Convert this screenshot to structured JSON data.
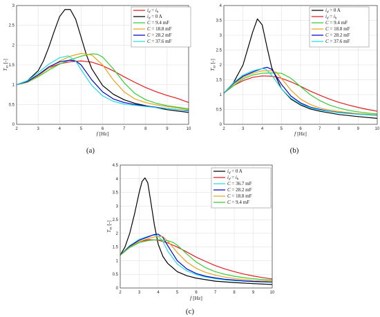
{
  "chart_data": [
    {
      "type": "line",
      "panel_label": "(a)",
      "xlabel_italic": "f",
      "xlabel_unit": " [Hz]",
      "ylabel_main": "T",
      "ylabel_sub": "xz",
      "ylabel_unit": " [-]",
      "xlim": [
        2,
        10
      ],
      "ylim": [
        0,
        3
      ],
      "xticks": [
        2,
        3,
        4,
        5,
        6,
        7,
        8,
        9,
        10
      ],
      "yticks": [
        0,
        0.5,
        1,
        1.5,
        2,
        2.5,
        3
      ],
      "grid": true,
      "legend_position": "top-right",
      "series": [
        {
          "legend_var": "i",
          "legend_sub": "d",
          "legend_rest": " = ",
          "legend_var2": "i",
          "legend_sub2": "h",
          "color": "#e31a1c",
          "x": [
            2,
            2.5,
            3,
            3.5,
            4,
            4.5,
            5,
            5.5,
            6,
            6.5,
            7,
            7.5,
            8,
            8.5,
            9,
            9.5,
            10
          ],
          "y": [
            1.0,
            1.08,
            1.25,
            1.42,
            1.53,
            1.58,
            1.6,
            1.57,
            1.48,
            1.35,
            1.2,
            1.06,
            0.93,
            0.82,
            0.73,
            0.65,
            0.55
          ]
        },
        {
          "legend_var": "i",
          "legend_sub": "d",
          "legend_rest": " = 0 A",
          "color": "#000000",
          "x": [
            2,
            2.5,
            3,
            3.25,
            3.5,
            3.75,
            4,
            4.25,
            4.5,
            4.75,
            5,
            5.25,
            5.5,
            6,
            6.5,
            7,
            7.5,
            8,
            9,
            10
          ],
          "y": [
            1.0,
            1.1,
            1.35,
            1.6,
            1.95,
            2.35,
            2.72,
            2.9,
            2.9,
            2.65,
            2.2,
            1.75,
            1.4,
            0.98,
            0.76,
            0.62,
            0.53,
            0.47,
            0.37,
            0.3
          ]
        },
        {
          "legend_var": "C",
          "legend_rest": " = 9.4 mF",
          "color": "#33cc33",
          "x": [
            2,
            2.5,
            3,
            3.5,
            4,
            4.5,
            5,
            5.5,
            5.75,
            6,
            6.5,
            7,
            7.5,
            8,
            8.5,
            9,
            9.5,
            10
          ],
          "y": [
            1.0,
            1.06,
            1.2,
            1.37,
            1.52,
            1.63,
            1.72,
            1.78,
            1.77,
            1.7,
            1.4,
            1.05,
            0.78,
            0.62,
            0.53,
            0.47,
            0.43,
            0.39
          ]
        },
        {
          "legend_var": "C",
          "legend_rest": " = 18.8 mF",
          "color": "#e8a317",
          "x": [
            2,
            2.5,
            3,
            3.5,
            4,
            4.5,
            5,
            5.5,
            6,
            6.5,
            7,
            7.5,
            8,
            8.5,
            9,
            9.5,
            10
          ],
          "y": [
            1.0,
            1.07,
            1.22,
            1.42,
            1.6,
            1.72,
            1.79,
            1.75,
            1.5,
            1.12,
            0.82,
            0.64,
            0.55,
            0.49,
            0.45,
            0.41,
            0.37
          ]
        },
        {
          "legend_var": "C",
          "legend_rest": " = 28.2 mF",
          "color": "#0000cc",
          "x": [
            2,
            2.5,
            3,
            3.5,
            4,
            4.5,
            4.75,
            5,
            5.5,
            6,
            6.5,
            7,
            7.5,
            8,
            8.5,
            9,
            9.5,
            10
          ],
          "y": [
            1.0,
            1.08,
            1.25,
            1.45,
            1.58,
            1.62,
            1.6,
            1.5,
            1.12,
            0.82,
            0.64,
            0.55,
            0.5,
            0.46,
            0.43,
            0.4,
            0.37,
            0.34
          ]
        },
        {
          "legend_var": "C",
          "legend_rest": " = 37.6 mF",
          "color": "#22dddd",
          "x": [
            2,
            2.5,
            3,
            3.5,
            4,
            4.4,
            4.75,
            5,
            5.5,
            6,
            6.5,
            7,
            7.5,
            8,
            8.5,
            9,
            9.5,
            10
          ],
          "y": [
            1.0,
            1.1,
            1.3,
            1.52,
            1.68,
            1.73,
            1.6,
            1.38,
            0.98,
            0.72,
            0.58,
            0.51,
            0.48,
            0.45,
            0.42,
            0.4,
            0.37,
            0.35
          ]
        }
      ]
    },
    {
      "type": "line",
      "panel_label": "(b)",
      "xlabel_italic": "f",
      "xlabel_unit": " [Hz]",
      "ylabel_main": "T",
      "ylabel_sub": "xz",
      "ylabel_unit": " [-]",
      "xlim": [
        2,
        10
      ],
      "ylim": [
        0,
        4
      ],
      "xticks": [
        2,
        3,
        4,
        5,
        6,
        7,
        8,
        9,
        10
      ],
      "yticks": [
        0,
        0.5,
        1,
        1.5,
        2,
        2.5,
        3,
        3.5,
        4
      ],
      "grid": true,
      "legend_position": "top-right",
      "series": [
        {
          "legend_var": "i",
          "legend_sub": "d",
          "legend_rest": " = 0 A",
          "color": "#000000",
          "x": [
            2,
            2.5,
            3,
            3.25,
            3.5,
            3.75,
            4,
            4.25,
            4.5,
            5,
            5.5,
            6,
            6.5,
            7,
            8,
            9,
            10
          ],
          "y": [
            1.05,
            1.4,
            2.0,
            2.55,
            3.1,
            3.55,
            3.35,
            2.6,
            1.9,
            1.2,
            0.85,
            0.65,
            0.52,
            0.44,
            0.33,
            0.26,
            0.2
          ]
        },
        {
          "legend_var": "i",
          "legend_sub": "d",
          "legend_rest": " = ",
          "legend_var2": "i",
          "legend_sub2": "h",
          "color": "#e31a1c",
          "x": [
            2,
            2.5,
            3,
            3.5,
            4,
            4.5,
            5,
            5.5,
            6,
            6.5,
            7,
            7.5,
            8,
            8.5,
            9,
            9.5,
            10
          ],
          "y": [
            1.05,
            1.3,
            1.47,
            1.58,
            1.63,
            1.62,
            1.55,
            1.43,
            1.28,
            1.12,
            0.98,
            0.85,
            0.74,
            0.65,
            0.57,
            0.5,
            0.44
          ]
        },
        {
          "legend_var": "C",
          "legend_rest": " = 9.4 mF",
          "color": "#33cc33",
          "x": [
            2,
            2.5,
            3,
            3.5,
            4,
            4.5,
            5,
            5.5,
            6,
            6.5,
            7,
            7.5,
            8,
            8.5,
            9,
            9.5,
            10
          ],
          "y": [
            1.05,
            1.3,
            1.53,
            1.66,
            1.72,
            1.73,
            1.72,
            1.55,
            1.27,
            1.0,
            0.8,
            0.65,
            0.55,
            0.47,
            0.42,
            0.38,
            0.35
          ]
        },
        {
          "legend_var": "C",
          "legend_rest": " = 18.8 mF",
          "color": "#e8a317",
          "x": [
            2,
            2.5,
            3,
            3.5,
            4,
            4.5,
            4.75,
            5,
            5.5,
            6,
            6.5,
            7,
            7.5,
            8,
            8.5,
            9,
            9.5,
            10
          ],
          "y": [
            1.05,
            1.35,
            1.58,
            1.72,
            1.8,
            1.8,
            1.75,
            1.55,
            1.15,
            0.85,
            0.67,
            0.55,
            0.48,
            0.43,
            0.39,
            0.36,
            0.34,
            0.32
          ]
        },
        {
          "legend_var": "C",
          "legend_rest": " = 28.2 mF",
          "color": "#0000cc",
          "x": [
            2,
            2.5,
            3,
            3.5,
            4,
            4.25,
            4.5,
            5,
            5.5,
            6,
            6.5,
            7,
            7.5,
            8,
            8.5,
            9,
            9.5,
            10
          ],
          "y": [
            1.05,
            1.38,
            1.62,
            1.76,
            1.88,
            1.92,
            1.85,
            1.35,
            0.95,
            0.72,
            0.58,
            0.5,
            0.44,
            0.4,
            0.37,
            0.34,
            0.32,
            0.3
          ]
        },
        {
          "legend_var": "C",
          "legend_rest": " = 37.6 mF",
          "color": "#22dddd",
          "x": [
            2,
            2.5,
            3,
            3.5,
            4,
            4.2,
            4.5,
            5,
            5.5,
            6,
            6.5,
            7,
            7.5,
            8,
            8.5,
            9,
            9.5,
            10
          ],
          "y": [
            1.05,
            1.4,
            1.66,
            1.8,
            1.88,
            1.85,
            1.65,
            1.2,
            0.88,
            0.68,
            0.56,
            0.48,
            0.43,
            0.39,
            0.36,
            0.34,
            0.32,
            0.3
          ]
        }
      ]
    },
    {
      "type": "line",
      "panel_label": "(c)",
      "xlabel_italic": "f",
      "xlabel_unit": " [Hz]",
      "ylabel_main": "T",
      "ylabel_sub": "xz",
      "ylabel_unit": " [-]",
      "xlim": [
        2,
        10
      ],
      "ylim": [
        0,
        4.5
      ],
      "xticks": [
        2,
        3,
        4,
        5,
        6,
        7,
        8,
        9,
        10
      ],
      "yticks": [
        0,
        0.5,
        1,
        1.5,
        2,
        2.5,
        3,
        3.5,
        4,
        4.5
      ],
      "grid": true,
      "legend_position": "top-right",
      "series": [
        {
          "legend_var": "i",
          "legend_sub": "d",
          "legend_rest": " = 0 A",
          "color": "#000000",
          "x": [
            2,
            2.25,
            2.5,
            2.75,
            3,
            3.15,
            3.3,
            3.45,
            3.6,
            3.8,
            4,
            4.25,
            4.5,
            5,
            5.5,
            6,
            7,
            8,
            9,
            10
          ],
          "y": [
            1.2,
            1.5,
            2.0,
            2.7,
            3.5,
            3.9,
            4.03,
            3.85,
            3.2,
            2.3,
            1.6,
            1.15,
            0.9,
            0.6,
            0.45,
            0.36,
            0.25,
            0.2,
            0.16,
            0.13
          ]
        },
        {
          "legend_var": "i",
          "legend_sub": "d",
          "legend_rest": " = ",
          "legend_var2": "i",
          "legend_sub2": "h",
          "color": "#e31a1c",
          "x": [
            2,
            2.5,
            3,
            3.5,
            4,
            4.5,
            5,
            5.5,
            6,
            6.5,
            7,
            7.5,
            8,
            8.5,
            9,
            9.5,
            10
          ],
          "y": [
            1.2,
            1.5,
            1.7,
            1.77,
            1.75,
            1.65,
            1.5,
            1.32,
            1.13,
            0.97,
            0.82,
            0.7,
            0.6,
            0.51,
            0.44,
            0.38,
            0.33
          ]
        },
        {
          "legend_var": "C",
          "legend_rest": " = 36.7 mF",
          "color": "#22dddd",
          "x": [
            2,
            2.5,
            3,
            3.5,
            3.8,
            4,
            4.25,
            4.5,
            5,
            5.5,
            6,
            6.5,
            7,
            7.5,
            8,
            8.5,
            9,
            9.5,
            10
          ],
          "y": [
            1.2,
            1.55,
            1.78,
            1.9,
            1.94,
            1.9,
            1.7,
            1.35,
            0.88,
            0.63,
            0.49,
            0.4,
            0.34,
            0.3,
            0.27,
            0.25,
            0.23,
            0.22,
            0.21
          ]
        },
        {
          "legend_var": "C",
          "legend_rest": " = 28.2 mF",
          "color": "#0000cc",
          "x": [
            2,
            2.5,
            3,
            3.5,
            3.75,
            4,
            4.25,
            4.5,
            5,
            5.5,
            6,
            6.5,
            7,
            7.5,
            8,
            8.5,
            9,
            9.5,
            10
          ],
          "y": [
            1.2,
            1.53,
            1.75,
            1.88,
            1.95,
            1.97,
            1.85,
            1.55,
            1.0,
            0.7,
            0.53,
            0.43,
            0.37,
            0.32,
            0.29,
            0.26,
            0.24,
            0.23,
            0.22
          ]
        },
        {
          "legend_var": "C",
          "legend_rest": " = 18.8 mF",
          "color": "#e8a317",
          "x": [
            2,
            2.5,
            3,
            3.5,
            4,
            4.25,
            4.5,
            5,
            5.5,
            6,
            6.5,
            7,
            7.5,
            8,
            8.5,
            9,
            9.5,
            10
          ],
          "y": [
            1.2,
            1.5,
            1.7,
            1.82,
            1.9,
            1.88,
            1.72,
            1.3,
            0.95,
            0.72,
            0.57,
            0.47,
            0.4,
            0.35,
            0.31,
            0.28,
            0.26,
            0.25
          ]
        },
        {
          "legend_var": "C",
          "legend_rest": " = 9.4 mF",
          "color": "#33cc33",
          "x": [
            2,
            2.5,
            3,
            3.5,
            4,
            4.5,
            4.75,
            5,
            5.5,
            6,
            6.5,
            7,
            7.5,
            8,
            8.5,
            9,
            9.5,
            10
          ],
          "y": [
            1.2,
            1.48,
            1.66,
            1.74,
            1.77,
            1.73,
            1.68,
            1.57,
            1.25,
            0.95,
            0.74,
            0.6,
            0.5,
            0.43,
            0.38,
            0.34,
            0.31,
            0.29
          ]
        }
      ]
    }
  ]
}
